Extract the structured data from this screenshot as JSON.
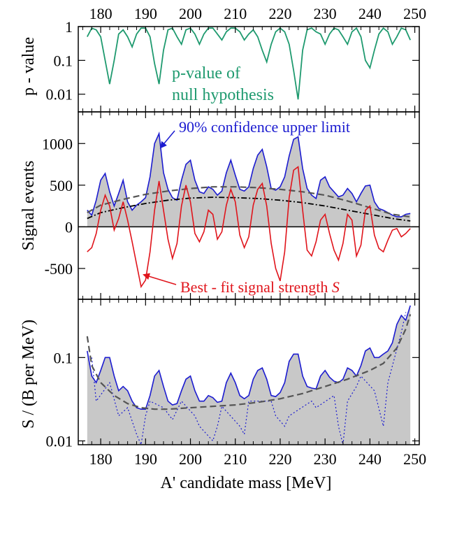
{
  "colors": {
    "pvalue": "#1f9a6f",
    "upper": "#1b1bd0",
    "bestfit": "#e0141b",
    "fill": "#c8c8c8",
    "dash": "#555555",
    "dashdot": "#000000"
  },
  "xaxis": {
    "label": "A' candidate mass  [MeV]",
    "ticks": [
      180,
      190,
      200,
      210,
      220,
      230,
      240,
      250
    ],
    "range": [
      175,
      251
    ]
  },
  "chart_data": [
    {
      "type": "line",
      "panel": "top",
      "ylabel": "p - value",
      "yscale": "log",
      "ylim": [
        0.003,
        1
      ],
      "yticks": [
        {
          "v": 1,
          "label": "1"
        },
        {
          "v": 0.1,
          "label": "0.1"
        },
        {
          "v": 0.01,
          "label": "0.01"
        }
      ],
      "annotation": [
        "p-value of",
        "null hypothesis"
      ],
      "series": [
        {
          "x": [
            177,
            178,
            179,
            180,
            181,
            182,
            183,
            184,
            185,
            186,
            187,
            188,
            189,
            190,
            191,
            192,
            193,
            194,
            195,
            196,
            197,
            198,
            199,
            200,
            201,
            202,
            203,
            204,
            205,
            206,
            207,
            208,
            209,
            210,
            211,
            212,
            213,
            214,
            215,
            216,
            217,
            218,
            219,
            220,
            221,
            222,
            223,
            224,
            225,
            226,
            227,
            228,
            229,
            230,
            231,
            232,
            233,
            234,
            235,
            236,
            237,
            238,
            239,
            240,
            241,
            242,
            243,
            244,
            245,
            246,
            247,
            248,
            249
          ],
          "values": [
            0.5,
            0.9,
            0.8,
            0.5,
            0.1,
            0.02,
            0.1,
            0.6,
            0.8,
            0.5,
            0.25,
            0.6,
            0.9,
            0.9,
            0.5,
            0.08,
            0.02,
            0.2,
            0.8,
            0.9,
            0.5,
            0.3,
            0.8,
            0.9,
            0.6,
            0.3,
            0.6,
            0.9,
            0.9,
            0.6,
            0.4,
            0.7,
            0.9,
            0.9,
            0.7,
            0.4,
            0.6,
            0.8,
            0.5,
            0.2,
            0.09,
            0.3,
            0.7,
            0.9,
            0.7,
            0.3,
            0.05,
            0.007,
            0.2,
            0.8,
            0.9,
            0.7,
            0.6,
            0.3,
            0.6,
            0.9,
            0.8,
            0.5,
            0.3,
            0.7,
            0.9,
            0.5,
            0.1,
            0.06,
            0.2,
            0.6,
            0.9,
            0.7,
            0.3,
            0.5,
            0.9,
            0.8,
            0.4
          ]
        }
      ]
    },
    {
      "type": "line",
      "panel": "middle",
      "ylabel": "Signal events",
      "ylim": [
        -870,
        1380
      ],
      "yticks": [
        {
          "v": 1000,
          "label": "1000"
        },
        {
          "v": 500,
          "label": "500"
        },
        {
          "v": 0,
          "label": "0"
        },
        {
          "v": -500,
          "label": "-500"
        }
      ],
      "annotations": {
        "upper": "90% confidence  upper  limit",
        "bestfit": "Best - fit signal strength ",
        "bestfit_symbol": "S"
      },
      "series": [
        {
          "role": "upper",
          "x": [
            177,
            178,
            179,
            180,
            181,
            182,
            183,
            184,
            185,
            186,
            187,
            188,
            189,
            190,
            191,
            192,
            193,
            194,
            195,
            196,
            197,
            198,
            199,
            200,
            201,
            202,
            203,
            204,
            205,
            206,
            207,
            208,
            209,
            210,
            211,
            212,
            213,
            214,
            215,
            216,
            217,
            218,
            219,
            220,
            221,
            222,
            223,
            224,
            225,
            226,
            227,
            228,
            229,
            230,
            231,
            232,
            233,
            234,
            235,
            236,
            237,
            238,
            239,
            240,
            241,
            242,
            243,
            244,
            245,
            246,
            247,
            248,
            249
          ],
          "values": [
            200,
            140,
            320,
            560,
            640,
            420,
            250,
            400,
            560,
            300,
            200,
            260,
            300,
            350,
            600,
            1000,
            1120,
            650,
            450,
            350,
            320,
            560,
            750,
            800,
            560,
            420,
            400,
            480,
            450,
            380,
            430,
            650,
            800,
            620,
            450,
            430,
            480,
            700,
            860,
            930,
            720,
            460,
            440,
            480,
            600,
            850,
            1050,
            1080,
            700,
            460,
            380,
            340,
            560,
            600,
            480,
            420,
            360,
            380,
            460,
            400,
            300,
            400,
            490,
            500,
            300,
            220,
            200,
            170,
            140,
            120,
            120,
            150,
            160
          ]
        },
        {
          "role": "limit_median",
          "x": [
            177,
            180,
            185,
            190,
            195,
            200,
            205,
            210,
            215,
            220,
            225,
            230,
            235,
            240,
            245,
            249
          ],
          "values": [
            170,
            260,
            330,
            390,
            430,
            460,
            480,
            480,
            470,
            450,
            420,
            380,
            310,
            230,
            150,
            120
          ]
        },
        {
          "role": "expected",
          "x": [
            177,
            180,
            185,
            190,
            195,
            200,
            205,
            210,
            215,
            220,
            225,
            230,
            235,
            240,
            245,
            249
          ],
          "values": [
            100,
            170,
            230,
            280,
            320,
            345,
            355,
            350,
            340,
            320,
            290,
            250,
            200,
            150,
            100,
            70
          ]
        },
        {
          "role": "bestfit",
          "x": [
            177,
            178,
            179,
            180,
            181,
            182,
            183,
            184,
            185,
            186,
            187,
            188,
            189,
            190,
            191,
            192,
            193,
            194,
            195,
            196,
            197,
            198,
            199,
            200,
            201,
            202,
            203,
            204,
            205,
            206,
            207,
            208,
            209,
            210,
            211,
            212,
            213,
            214,
            215,
            216,
            217,
            218,
            219,
            220,
            221,
            222,
            223,
            224,
            225,
            226,
            227,
            228,
            229,
            230,
            231,
            232,
            233,
            234,
            235,
            236,
            237,
            238,
            239,
            240,
            241,
            242,
            243,
            244,
            245,
            246,
            247,
            248,
            249
          ],
          "values": [
            -300,
            -250,
            -80,
            200,
            380,
            250,
            -40,
            100,
            300,
            80,
            -180,
            -450,
            -720,
            -640,
            -300,
            200,
            550,
            200,
            -150,
            -380,
            -200,
            250,
            500,
            300,
            -80,
            -180,
            -60,
            200,
            150,
            -150,
            -60,
            260,
            450,
            300,
            -100,
            -250,
            -120,
            260,
            450,
            520,
            250,
            -200,
            -500,
            -650,
            -300,
            350,
            680,
            720,
            200,
            -280,
            -350,
            -180,
            80,
            150,
            -80,
            -280,
            -400,
            -200,
            150,
            80,
            -350,
            -220,
            200,
            250,
            -100,
            -260,
            -300,
            -160,
            -40,
            -20,
            -120,
            -80,
            -20
          ]
        }
      ]
    },
    {
      "type": "area",
      "panel": "bottom",
      "ylabel": "S / (B per MeV)",
      "yscale": "log",
      "ylim": [
        0.009,
        0.5
      ],
      "yticks": [
        {
          "v": 0.1,
          "label": "0.1"
        },
        {
          "v": 0.01,
          "label": "0.01"
        }
      ],
      "series": [
        {
          "role": "upper_ratio",
          "x": [
            177,
            178,
            179,
            180,
            181,
            182,
            183,
            184,
            185,
            186,
            187,
            188,
            189,
            190,
            191,
            192,
            193,
            194,
            195,
            196,
            197,
            198,
            199,
            200,
            201,
            202,
            203,
            204,
            205,
            206,
            207,
            208,
            209,
            210,
            211,
            212,
            213,
            214,
            215,
            216,
            217,
            218,
            219,
            220,
            221,
            222,
            223,
            224,
            225,
            226,
            227,
            228,
            229,
            230,
            231,
            232,
            233,
            234,
            235,
            236,
            237,
            238,
            239,
            240,
            241,
            242,
            243,
            244,
            245,
            246,
            247,
            248,
            249
          ],
          "values": [
            0.12,
            0.06,
            0.05,
            0.07,
            0.1,
            0.1,
            0.06,
            0.04,
            0.045,
            0.04,
            0.03,
            0.025,
            0.024,
            0.024,
            0.035,
            0.06,
            0.07,
            0.045,
            0.03,
            0.027,
            0.028,
            0.04,
            0.055,
            0.06,
            0.04,
            0.03,
            0.03,
            0.035,
            0.033,
            0.029,
            0.03,
            0.05,
            0.065,
            0.05,
            0.035,
            0.032,
            0.035,
            0.055,
            0.07,
            0.075,
            0.055,
            0.035,
            0.034,
            0.038,
            0.05,
            0.09,
            0.11,
            0.11,
            0.06,
            0.045,
            0.043,
            0.042,
            0.06,
            0.07,
            0.058,
            0.052,
            0.05,
            0.055,
            0.075,
            0.07,
            0.06,
            0.08,
            0.12,
            0.13,
            0.1,
            0.1,
            0.11,
            0.12,
            0.15,
            0.25,
            0.32,
            0.28,
            0.42
          ]
        },
        {
          "role": "median_ratio",
          "x": [
            177,
            178,
            180,
            183,
            186,
            189,
            192,
            195,
            200,
            205,
            210,
            215,
            220,
            225,
            230,
            235,
            240,
            243,
            246,
            248,
            249
          ],
          "values": [
            0.18,
            0.08,
            0.05,
            0.035,
            0.028,
            0.025,
            0.024,
            0.024,
            0.025,
            0.026,
            0.027,
            0.029,
            0.032,
            0.037,
            0.045,
            0.055,
            0.07,
            0.085,
            0.13,
            0.22,
            0.33
          ]
        },
        {
          "role": "dip_ratio",
          "x": [
            178,
            179,
            182,
            184,
            186,
            188,
            189,
            190,
            191,
            194,
            196,
            198,
            201,
            202,
            205,
            206,
            207,
            211,
            212,
            213,
            218,
            219,
            221,
            222,
            227,
            228,
            232,
            233,
            234,
            235,
            237,
            238,
            241,
            243,
            244,
            247,
            248
          ],
          "values": [
            0.1,
            0.03,
            0.05,
            0.02,
            0.025,
            0.012,
            0.009,
            0.02,
            0.03,
            0.025,
            0.018,
            0.03,
            0.02,
            0.015,
            0.01,
            0.015,
            0.026,
            0.015,
            0.012,
            0.03,
            0.03,
            0.02,
            0.015,
            0.02,
            0.03,
            0.025,
            0.035,
            0.015,
            0.009,
            0.03,
            0.045,
            0.06,
            0.04,
            0.015,
            0.05,
            0.2,
            0.35
          ]
        }
      ]
    }
  ]
}
